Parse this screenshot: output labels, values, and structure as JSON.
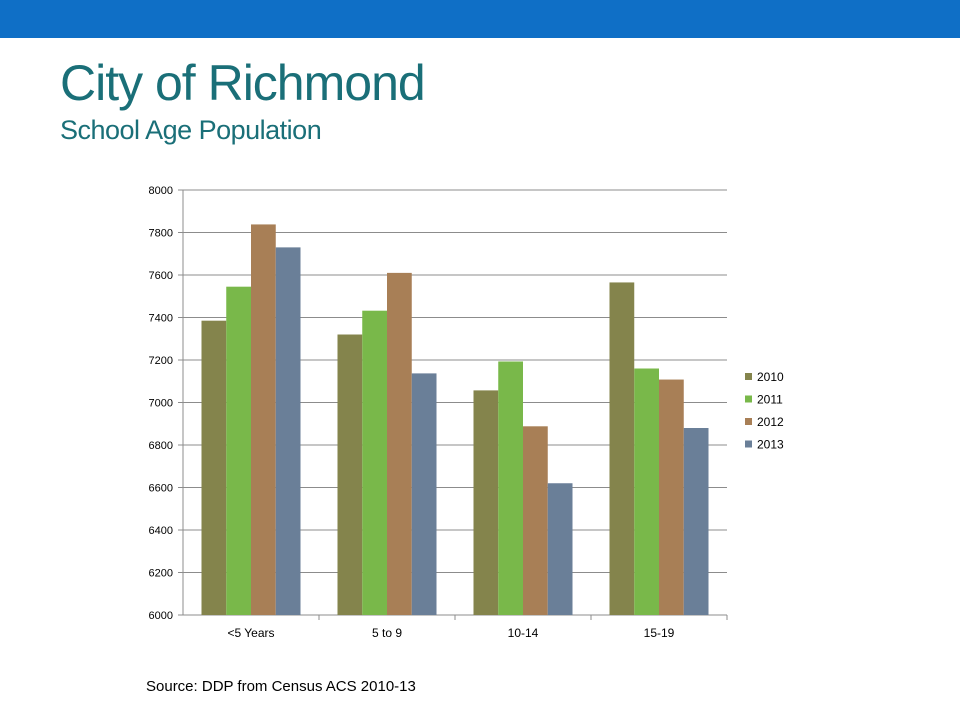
{
  "theme": {
    "top_bar_color": "#0f6fc6",
    "title_color": "#1a6f78"
  },
  "slide": {
    "title": "City of Richmond",
    "subtitle": "School Age Population",
    "source": "Source:  DDP from  Census ACS 2010-13"
  },
  "chart_data": {
    "type": "bar",
    "title": "",
    "xlabel": "",
    "ylabel": "",
    "categories": [
      "<5 Years",
      "5 to 9",
      "10-14",
      "15-19"
    ],
    "series": [
      {
        "name": "2010",
        "color": "#84844c",
        "values": [
          7385,
          7320,
          7057,
          7565
        ]
      },
      {
        "name": "2011",
        "color": "#79b84a",
        "values": [
          7545,
          7432,
          7193,
          7160
        ]
      },
      {
        "name": "2012",
        "color": "#a87f56",
        "values": [
          7838,
          7610,
          6888,
          7108
        ]
      },
      {
        "name": "2013",
        "color": "#6a7f98",
        "values": [
          7730,
          7137,
          6620,
          6880
        ]
      }
    ],
    "ylim": [
      6000,
      8000
    ],
    "yticks": [
      6000,
      6200,
      6400,
      6600,
      6800,
      7000,
      7200,
      7400,
      7600,
      7800,
      8000
    ],
    "grid": true,
    "legend": "right"
  }
}
